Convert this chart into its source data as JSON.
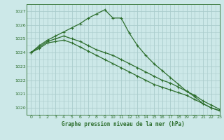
{
  "title": "Graphe pression niveau de la mer (hPa)",
  "background_color": "#cce8e8",
  "grid_color": "#aacccc",
  "line_color": "#2d6e2d",
  "xlim": [
    -0.5,
    23
  ],
  "ylim": [
    1019.5,
    1027.5
  ],
  "yticks": [
    1020,
    1021,
    1022,
    1023,
    1024,
    1025,
    1026,
    1027
  ],
  "xticks": [
    0,
    1,
    2,
    3,
    4,
    5,
    6,
    7,
    8,
    9,
    10,
    11,
    12,
    13,
    14,
    15,
    16,
    17,
    18,
    19,
    20,
    21,
    22,
    23
  ],
  "series": [
    {
      "x": [
        0,
        1,
        2,
        3,
        4,
        5,
        6,
        7,
        8,
        9,
        10,
        11,
        12,
        13,
        14,
        15,
        16,
        17,
        18,
        19,
        20,
        21,
        22,
        23
      ],
      "y": [
        1024.0,
        1024.5,
        1024.9,
        1025.2,
        1025.5,
        1025.8,
        1026.1,
        1026.5,
        1026.8,
        1027.1,
        1026.5,
        1026.5,
        1025.4,
        1024.5,
        1023.8,
        1023.2,
        1022.7,
        1022.2,
        1021.7,
        1021.2,
        1020.8,
        1020.3,
        1020.0,
        1019.8
      ]
    },
    {
      "x": [
        0,
        1,
        2,
        3,
        4,
        5,
        6,
        7,
        8,
        9,
        10,
        11,
        12,
        13,
        14,
        15,
        16,
        17,
        18,
        19,
        20,
        21,
        22,
        23
      ],
      "y": [
        1024.0,
        1024.4,
        1024.8,
        1025.0,
        1025.2,
        1025.0,
        1024.8,
        1024.5,
        1024.2,
        1024.0,
        1023.8,
        1023.5,
        1023.2,
        1022.9,
        1022.6,
        1022.3,
        1022.0,
        1021.8,
        1021.5,
        1021.2,
        1020.9,
        1020.5,
        1020.2,
        1019.9
      ]
    },
    {
      "x": [
        0,
        1,
        2,
        3,
        4,
        5,
        6,
        7,
        8,
        9,
        10,
        11,
        12,
        13,
        14,
        15,
        16,
        17,
        18,
        19,
        20,
        21,
        22,
        23
      ],
      "y": [
        1024.0,
        1024.3,
        1024.7,
        1024.8,
        1024.9,
        1024.7,
        1024.4,
        1024.1,
        1023.8,
        1023.5,
        1023.2,
        1022.9,
        1022.6,
        1022.3,
        1022.0,
        1021.7,
        1021.5,
        1021.3,
        1021.1,
        1020.9,
        1020.6,
        1020.3,
        1020.0,
        1019.8
      ]
    }
  ]
}
